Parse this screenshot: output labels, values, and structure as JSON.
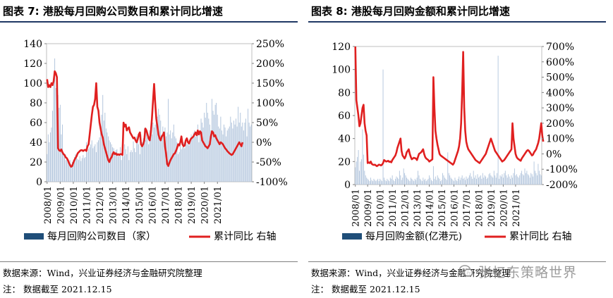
{
  "figures": [
    {
      "title": "图表 7:  港股每月回购公司数目和累计同比增速",
      "source": "数据来源：Wind，兴业证券经济与金融研究院整理",
      "note": "注：  数据截至 2021.12.15",
      "legend": {
        "bar": "每月回购公司数目（家）",
        "line": "累计同比 右轴"
      },
      "colors": {
        "bar": "#aec2db",
        "bar_legend": "#1f4e79",
        "line": "#e02020"
      }
    },
    {
      "title": "图表 8:  港股每月回购金额和累计同比增速",
      "source": "数据来源：Wind，兴业证券经济与金融研究院整理",
      "note": "注：  数据截至 2021.12.15",
      "legend": {
        "bar": "每月回购金额(亿港元)",
        "line": "累计同比 右轴"
      },
      "colors": {
        "bar": "#aec2db",
        "bar_legend": "#1f4e79",
        "line": "#e02020"
      },
      "watermark": "张忆东策略世界"
    }
  ],
  "chart_data": [
    {
      "type": "bar+line",
      "title": "港股每月回购公司数目和累计同比增速",
      "x_tick_labels": [
        "2008/01",
        "2009/01",
        "2010/01",
        "2011/01",
        "2012/01",
        "2013/01",
        "2014/01",
        "2015/01",
        "2016/01",
        "2017/01",
        "2018/01",
        "2019/01",
        "2020/01",
        "2021/01"
      ],
      "left_axis": {
        "ylim": [
          0,
          140
        ],
        "ticks": [
          0,
          20,
          40,
          60,
          80,
          100,
          120,
          140
        ]
      },
      "right_axis": {
        "ylim": [
          -100,
          250
        ],
        "ticks": [
          -100,
          -50,
          0,
          50,
          100,
          150,
          200,
          250
        ],
        "format": "percent"
      },
      "series": [
        {
          "name": "每月回购公司数目（家）",
          "axis": "left",
          "kind": "bar",
          "values": [
            28,
            48,
            40,
            50,
            55,
            72,
            105,
            125,
            95,
            108,
            88,
            75,
            78,
            48,
            58,
            28,
            26,
            22,
            24,
            21,
            20,
            22,
            18,
            20,
            22,
            25,
            28,
            24,
            23,
            22,
            26,
            21,
            24,
            27,
            24,
            25,
            40,
            30,
            33,
            35,
            38,
            42,
            34,
            36,
            38,
            30,
            40,
            42,
            45,
            50,
            68,
            88,
            62,
            70,
            54,
            50,
            46,
            42,
            40,
            38,
            35,
            34,
            30,
            32,
            33,
            26,
            28,
            35,
            22,
            30,
            26,
            38,
            33,
            28,
            36,
            22,
            30,
            32,
            30,
            41,
            34,
            30,
            46,
            42,
            38,
            28,
            48,
            40,
            44,
            54,
            42,
            50,
            45,
            38,
            52,
            56,
            48,
            60,
            55,
            58,
            70,
            66,
            74,
            68,
            62,
            48,
            56,
            50,
            55,
            46,
            50,
            84,
            48,
            52,
            44,
            50,
            58,
            46,
            44,
            40,
            28,
            30,
            38,
            33,
            35,
            40,
            34,
            44,
            38,
            40,
            37,
            40,
            48,
            44,
            50,
            52,
            46,
            48,
            58,
            40,
            52,
            64,
            60,
            55,
            70,
            65,
            80,
            70,
            64,
            58,
            52,
            84,
            72,
            68,
            78,
            80,
            68,
            56,
            54,
            66,
            52,
            48,
            58,
            55,
            46,
            52,
            54,
            56,
            66,
            60,
            54,
            62,
            58,
            64,
            56,
            76,
            60,
            70,
            56,
            60,
            52,
            60,
            64,
            46,
            74,
            60,
            56,
            58
          ]
        },
        {
          "name": "累计同比 右轴",
          "axis": "right",
          "kind": "line",
          "values": [
            160,
            140,
            145,
            140,
            150,
            145,
            155,
            180,
            175,
            165,
            -15,
            -20,
            -22,
            -18,
            -25,
            -30,
            -32,
            -38,
            -40,
            -45,
            -52,
            -58,
            -62,
            -60,
            -52,
            -45,
            -40,
            -35,
            -28,
            -25,
            -22,
            -20,
            -20,
            -22,
            -20,
            -19,
            -22,
            -10,
            -5,
            20,
            45,
            70,
            90,
            95,
            110,
            150,
            90,
            80,
            50,
            35,
            20,
            12,
            -5,
            -15,
            -25,
            -35,
            -45,
            -50,
            -42,
            -38,
            -30,
            -25,
            -30,
            -28,
            -32,
            -30,
            -32,
            -30,
            -30,
            -32,
            50,
            40,
            45,
            30,
            35,
            38,
            25,
            20,
            15,
            10,
            12,
            5,
            0,
            8,
            20,
            25,
            -5,
            -10,
            -5,
            5,
            35,
            30,
            20,
            10,
            5,
            25,
            60,
            105,
            148,
            100,
            60,
            40,
            20,
            10,
            5,
            15,
            18,
            25,
            -10,
            -30,
            -55,
            -60,
            -52,
            -45,
            -40,
            -35,
            -30,
            -28,
            -22,
            -15,
            -5,
            -8,
            0,
            15,
            -5,
            -10,
            -8,
            5,
            10,
            0,
            -3,
            5,
            10,
            12,
            15,
            20,
            25,
            18,
            30,
            20,
            28,
            25,
            5,
            0,
            -5,
            -10,
            -12,
            -15,
            -10,
            -5,
            15,
            28,
            25,
            15,
            18,
            10,
            5,
            0,
            -5,
            0,
            -2,
            -5,
            -10,
            -15,
            -18,
            -22,
            -25,
            -28,
            -30,
            -32,
            -30,
            -25,
            -20,
            -15,
            -10,
            -5,
            0,
            -5,
            -10,
            0
          ]
        }
      ]
    },
    {
      "type": "bar+line",
      "title": "港股每月回购金额和累计同比增速",
      "x_tick_labels": [
        "2008/01",
        "2009/01",
        "2010/01",
        "2011/01",
        "2012/01",
        "2013/01",
        "2014/01",
        "2015/01",
        "2016/01",
        "2017/01",
        "2018/01",
        "2019/01",
        "2020/01",
        "2021/01"
      ],
      "left_axis": {
        "ylim": [
          0,
          120
        ],
        "ticks": [
          0,
          20,
          40,
          60,
          80,
          100,
          120
        ]
      },
      "right_axis": {
        "ylim": [
          -200,
          700
        ],
        "ticks": [
          -200,
          -100,
          0,
          100,
          200,
          300,
          400,
          500,
          600,
          700
        ],
        "format": "percent"
      },
      "series": [
        {
          "name": "每月回购金额(亿港元)",
          "axis": "left",
          "kind": "bar",
          "values": [
            15,
            20,
            24,
            30,
            12,
            20,
            22,
            48,
            26,
            12,
            8,
            6,
            5,
            4,
            3,
            6,
            4,
            3,
            5,
            4,
            3,
            4,
            5,
            3,
            5,
            4,
            3,
            100,
            6,
            4,
            3,
            5,
            4,
            3,
            6,
            5,
            8,
            4,
            3,
            5,
            7,
            6,
            5,
            12,
            8,
            4,
            6,
            14,
            10,
            8,
            6,
            5,
            4,
            3,
            6,
            5,
            4,
            3,
            5,
            4,
            6,
            12,
            8,
            5,
            4,
            3,
            6,
            4,
            5,
            3,
            4,
            5,
            8,
            6,
            4,
            3,
            16,
            5,
            7,
            4,
            8,
            6,
            5,
            3,
            4,
            10,
            8,
            6,
            5,
            4,
            28,
            10,
            8,
            6,
            5,
            4,
            3,
            6,
            4,
            3,
            5,
            7,
            4,
            6,
            8,
            5,
            6,
            4,
            7,
            5,
            6,
            8,
            10,
            7,
            5,
            12,
            6,
            8,
            5,
            9,
            6,
            7,
            8,
            5,
            10,
            6,
            8,
            7,
            5,
            6,
            9,
            10,
            8,
            7,
            6,
            12,
            8,
            6,
            10,
            112,
            5,
            8,
            7,
            9,
            6,
            10,
            12,
            8,
            6,
            9,
            7,
            5,
            8,
            6,
            10,
            14,
            8,
            9,
            7,
            6,
            8,
            10,
            12,
            9,
            8,
            14,
            10,
            12,
            9,
            8,
            6,
            10,
            9,
            7,
            20,
            12,
            10,
            8,
            18,
            12,
            9,
            8
          ]
        },
        {
          "name": "累计同比 右轴",
          "axis": "right",
          "kind": "line",
          "values": [
            700,
            350,
            300,
            250,
            180,
            200,
            250,
            300,
            320,
            200,
            150,
            120,
            -60,
            -55,
            -60,
            -50,
            -65,
            -70,
            -72,
            -70,
            -75,
            -80,
            -75,
            -70,
            -72,
            -75,
            -70,
            -60,
            -40,
            -45,
            -50,
            -48,
            -45,
            -52,
            -50,
            -55,
            -40,
            -30,
            -20,
            -10,
            10,
            40,
            60,
            80,
            100,
            20,
            -10,
            -20,
            -30,
            -15,
            10,
            20,
            30,
            0,
            -20,
            -35,
            -30,
            -25,
            -28,
            -30,
            -40,
            -20,
            0,
            5,
            10,
            20,
            30,
            0,
            -20,
            -30,
            -35,
            -40,
            -50,
            -45,
            -40,
            -35,
            500,
            300,
            150,
            100,
            60,
            30,
            0,
            -10,
            -15,
            -20,
            -25,
            -30,
            -35,
            -40,
            -45,
            -50,
            -55,
            -60,
            -65,
            -70,
            -60,
            -40,
            -20,
            0,
            20,
            50,
            100,
            200,
            400,
            665,
            300,
            150,
            80,
            50,
            30,
            20,
            10,
            0,
            -10,
            -20,
            -30,
            -40,
            -45,
            -50,
            -55,
            -60,
            -50,
            -40,
            -30,
            -20,
            -10,
            0,
            20,
            40,
            60,
            80,
            100,
            80,
            60,
            40,
            20,
            10,
            0,
            -10,
            -20,
            -30,
            -40,
            -50,
            -45,
            -40,
            -30,
            -20,
            -10,
            0,
            10,
            20,
            30,
            200,
            100,
            50,
            0,
            -20,
            -30,
            -35,
            -40,
            -45,
            -30,
            -20,
            -10,
            0,
            10,
            20,
            25,
            20,
            10,
            0,
            -10,
            -5,
            10,
            20,
            30,
            50,
            70,
            100,
            150,
            200,
            120,
            80
          ]
        }
      ]
    }
  ]
}
